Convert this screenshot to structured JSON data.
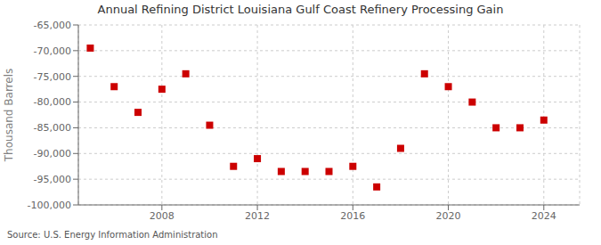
{
  "chart_data": {
    "type": "scatter",
    "title": "Annual Refining District Louisiana Gulf Coast Refinery Processing Gain",
    "ylabel": "Thousand Barrels",
    "source": "Source: U.S. Energy Information Administration",
    "x": [
      2005,
      2006,
      2007,
      2008,
      2009,
      2010,
      2011,
      2012,
      2013,
      2014,
      2015,
      2016,
      2017,
      2018,
      2019,
      2020,
      2021,
      2022,
      2023,
      2024
    ],
    "values": [
      -69500,
      -77000,
      -82000,
      -77500,
      -74500,
      -84500,
      -92500,
      -91000,
      -93500,
      -93500,
      -93500,
      -92500,
      -96500,
      -89000,
      -74500,
      -77000,
      -80000,
      -85000,
      -85000,
      -83500
    ],
    "xlim": [
      2004.5,
      2025.5
    ],
    "xticks": [
      2008,
      2012,
      2016,
      2020,
      2024
    ],
    "ylim": [
      -100000,
      -65000
    ],
    "yticks": [
      {
        "value": -100000,
        "label": "-100,000"
      },
      {
        "value": -95000,
        "label": "-95,000"
      },
      {
        "value": -90000,
        "label": "-90,000"
      },
      {
        "value": -85000,
        "label": "-85,000"
      },
      {
        "value": -80000,
        "label": "-80,000"
      },
      {
        "value": -75000,
        "label": "-75,000"
      },
      {
        "value": -70000,
        "label": "-70,000"
      },
      {
        "value": -65000,
        "label": "-65,000"
      }
    ],
    "color": "#cc0000",
    "marker": "square",
    "grid": true
  }
}
